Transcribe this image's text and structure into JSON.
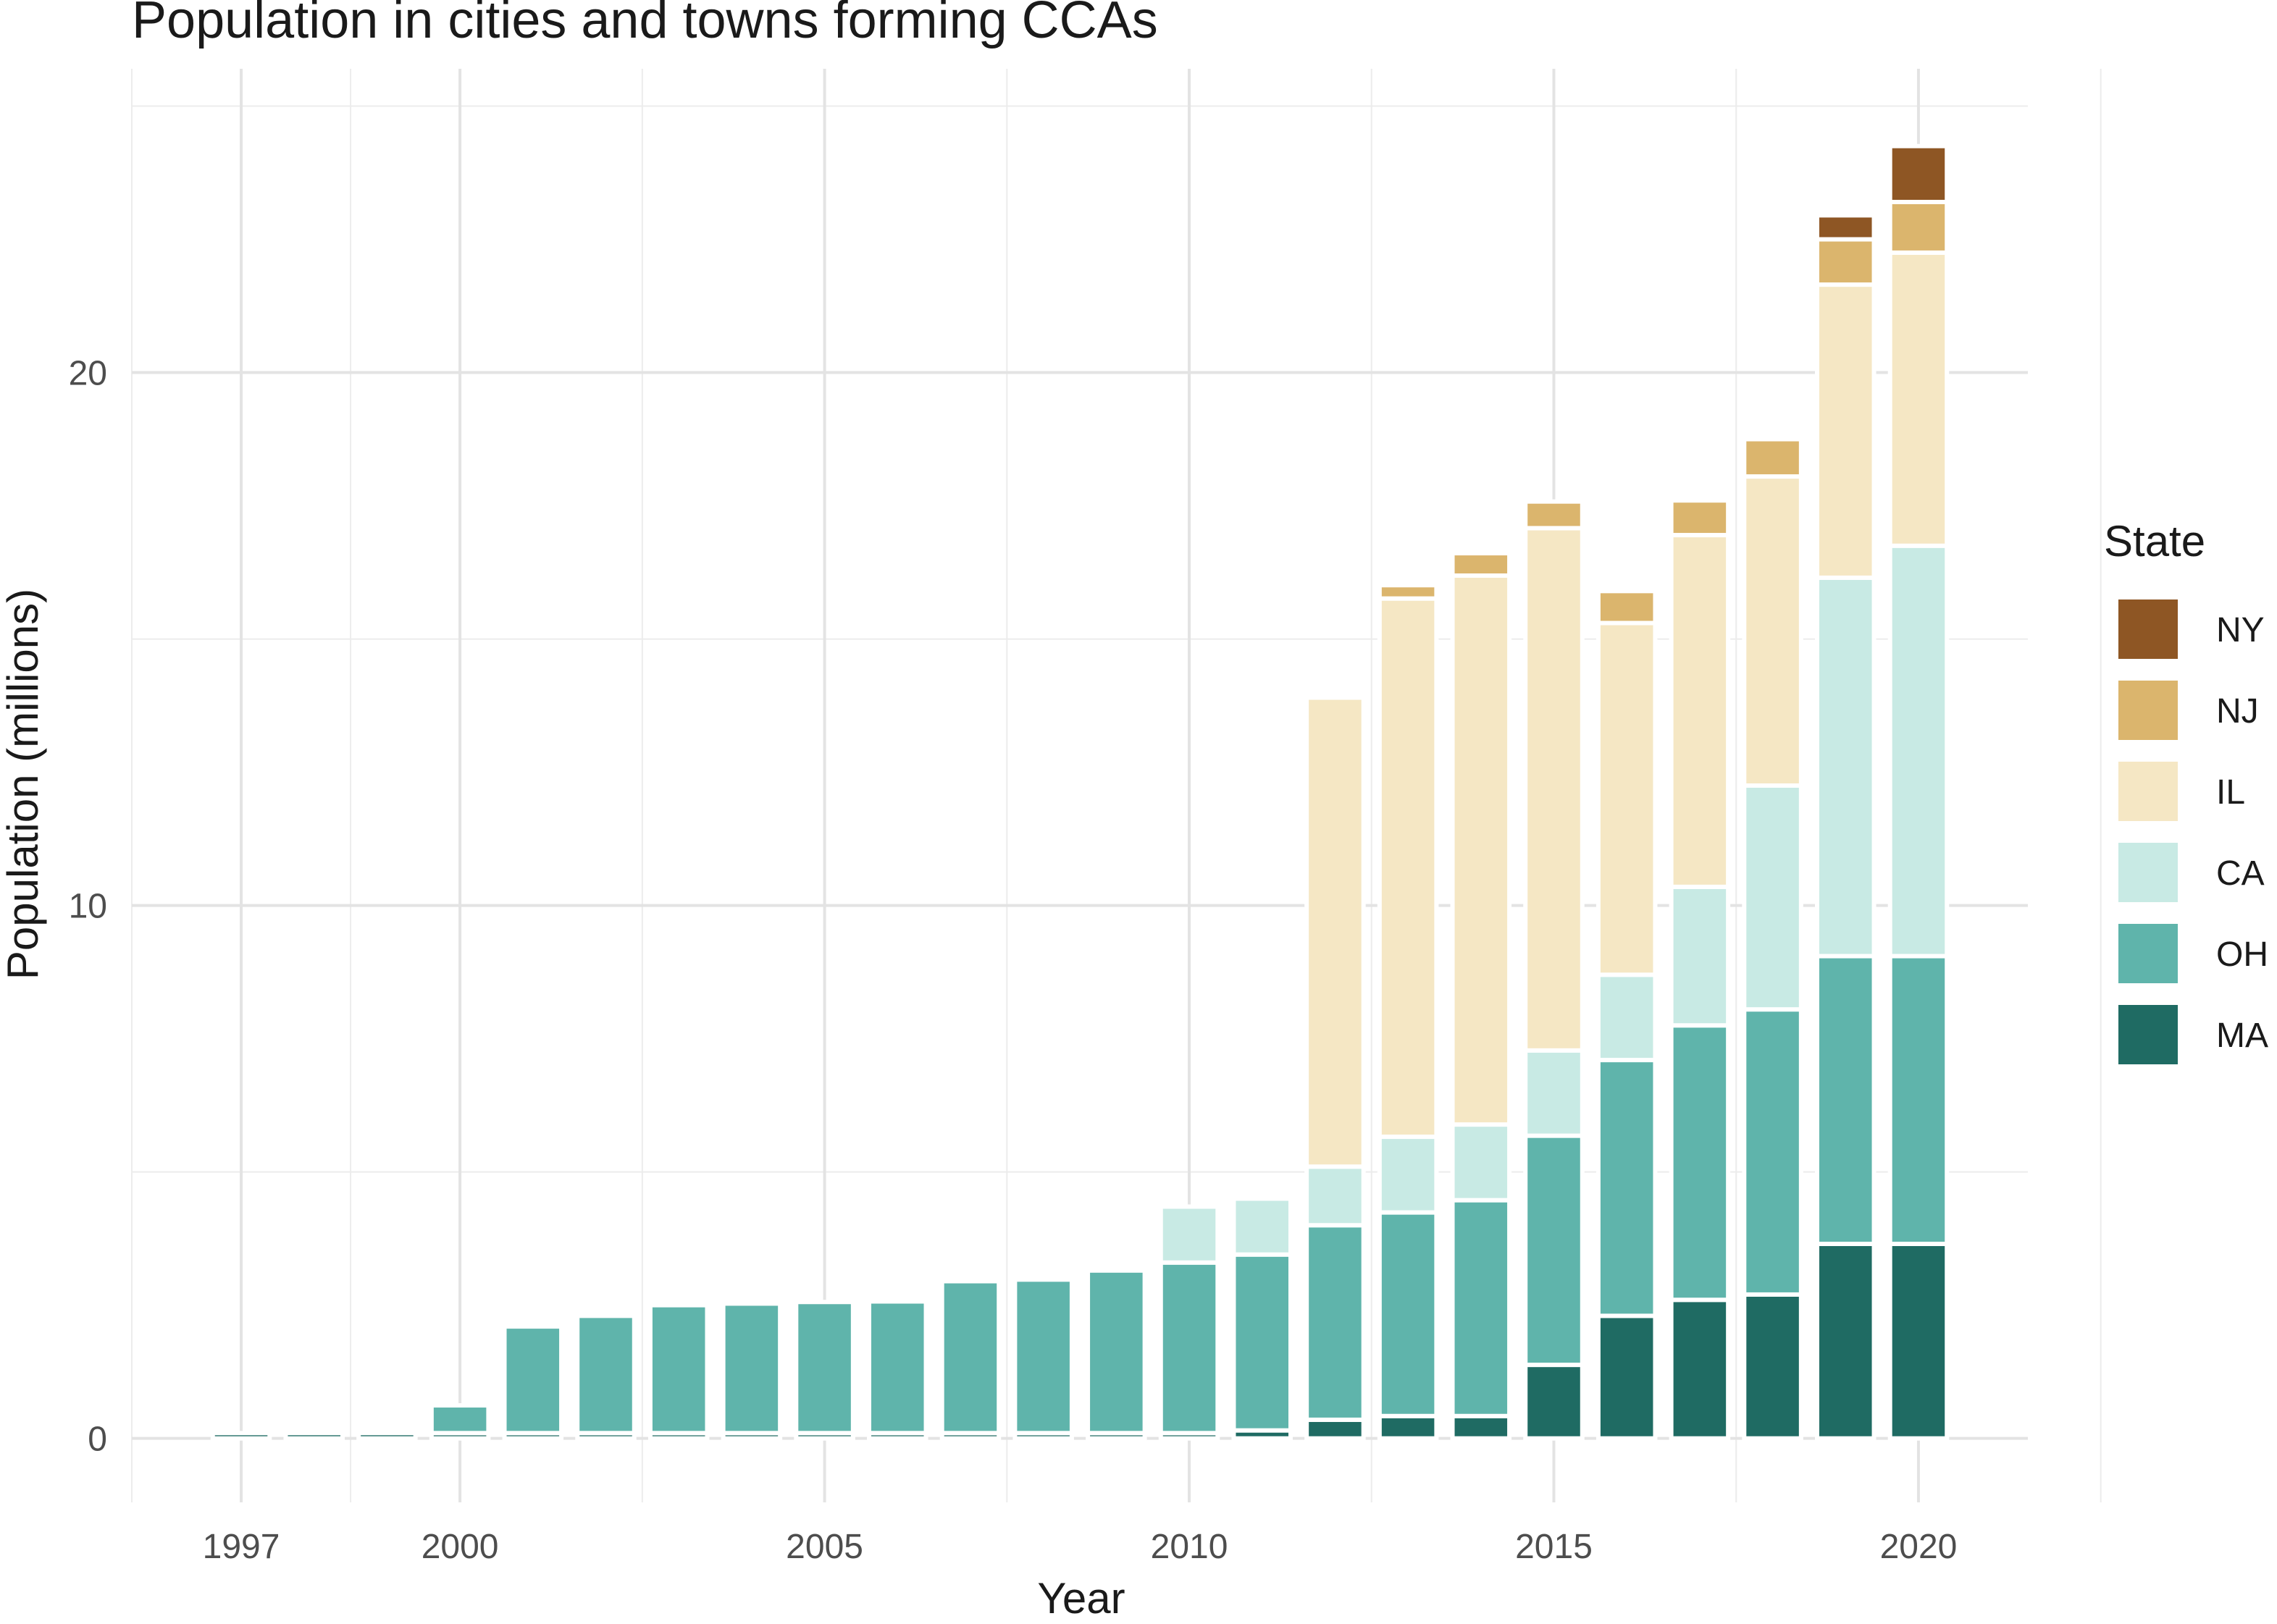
{
  "chart_data": {
    "type": "bar",
    "stacked": true,
    "title": "Population in cities and towns forming CCAs",
    "xlabel": "Year",
    "ylabel": "Population (millions)",
    "xlim": [
      1995.5,
      2021.5
    ],
    "ylim": [
      -1.2,
      25.7
    ],
    "x_ticks": [
      1997,
      2000,
      2005,
      2010,
      2015,
      2020
    ],
    "y_ticks": [
      0,
      10,
      20
    ],
    "grid": true,
    "legend": {
      "title": "State",
      "position": "right"
    },
    "x": [
      1997,
      1998,
      1999,
      2000,
      2001,
      2002,
      2003,
      2004,
      2005,
      2006,
      2007,
      2008,
      2009,
      2010,
      2011,
      2012,
      2013,
      2014,
      2015,
      2016,
      2017,
      2018,
      2019,
      2020
    ],
    "series": [
      {
        "name": "MA",
        "color": "#1f6b63",
        "values": [
          0.1,
          0.1,
          0.1,
          0.1,
          0.1,
          0.1,
          0.1,
          0.1,
          0.1,
          0.1,
          0.1,
          0.1,
          0.1,
          0.1,
          0.15,
          0.35,
          0.42,
          0.42,
          1.38,
          2.3,
          2.6,
          2.7,
          3.65,
          3.65
        ]
      },
      {
        "name": "OH",
        "color": "#5fb4ab",
        "values": [
          0.0,
          0.0,
          0.0,
          0.52,
          2.0,
          2.2,
          2.4,
          2.43,
          2.46,
          2.47,
          2.85,
          2.88,
          3.05,
          3.2,
          3.3,
          3.65,
          3.82,
          4.05,
          4.3,
          4.8,
          5.15,
          5.35,
          5.4,
          5.4
        ]
      },
      {
        "name": "CA",
        "color": "#c8eae4",
        "values": [
          0,
          0,
          0,
          0,
          0,
          0,
          0,
          0,
          0,
          0,
          0,
          0,
          0,
          1.05,
          1.05,
          1.1,
          1.42,
          1.42,
          1.6,
          1.6,
          2.6,
          4.2,
          7.1,
          7.7
        ]
      },
      {
        "name": "IL",
        "color": "#f5e7c4",
        "values": [
          0,
          0,
          0,
          0,
          0,
          0,
          0,
          0,
          0,
          0,
          0,
          0,
          0,
          0,
          0.06,
          8.8,
          10.1,
          10.3,
          9.8,
          6.6,
          6.6,
          5.8,
          5.5,
          5.5
        ]
      },
      {
        "name": "NJ",
        "color": "#dbb56d",
        "values": [
          0,
          0,
          0,
          0,
          0,
          0,
          0,
          0,
          0,
          0,
          0,
          0,
          0,
          0,
          0,
          0,
          0.25,
          0.42,
          0.5,
          0.6,
          0.65,
          0.7,
          0.85,
          0.95
        ]
      },
      {
        "name": "NY",
        "color": "#8e5624",
        "values": [
          0,
          0,
          0,
          0,
          0,
          0,
          0,
          0,
          0,
          0,
          0,
          0,
          0,
          0,
          0,
          0,
          0,
          0,
          0,
          0,
          0,
          0,
          0.45,
          1.05
        ]
      }
    ]
  }
}
